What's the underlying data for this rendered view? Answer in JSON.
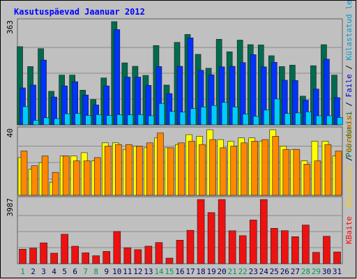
{
  "chart_data": {
    "type": "bar",
    "title": "Kasutuspäevad Jaanuar 2012",
    "categories": [
      "1",
      "2",
      "3",
      "4",
      "5",
      "6",
      "7",
      "8",
      "9",
      "10",
      "11",
      "12",
      "13",
      "14",
      "15",
      "16",
      "17",
      "18",
      "19",
      "20",
      "21",
      "22",
      "23",
      "24",
      "25",
      "26",
      "27",
      "28",
      "29",
      "30",
      "31"
    ],
    "weekend_days": [
      "1",
      "7",
      "8",
      "14",
      "15",
      "21",
      "22",
      "28",
      "29"
    ],
    "panels": [
      {
        "axis_max": "363",
        "ylim": [
          0,
          363
        ],
        "legend": [
          {
            "text": "Pöördumisi",
            "color": "#006633"
          },
          {
            "text": " / ",
            "color": "#000000"
          },
          {
            "text": "Faile",
            "color": "#0000cc"
          },
          {
            "text": " / ",
            "color": "#000000"
          },
          {
            "text": "Külastatud lehti",
            "color": "#0099cc"
          }
        ],
        "series": [
          {
            "name": "Pöördumisi",
            "color": "#006b4f",
            "values": [
              275,
              205,
              268,
              118,
              175,
              175,
              122,
              89,
              165,
              363,
              218,
              206,
              174,
              279,
              140,
              290,
              318,
              248,
              199,
              301,
              257,
              298,
              282,
              281,
              243,
              205,
              210,
              101,
              208,
              282,
              175
            ]
          },
          {
            "name": "Faile",
            "color": "#0033ff",
            "values": [
              130,
              140,
              228,
              98,
              137,
              152,
              105,
              70,
              137,
              335,
              168,
              168,
              139,
              205,
              110,
              206,
              306,
              192,
              176,
              204,
              206,
              219,
              247,
              204,
              220,
              157,
              156,
              87,
              126,
              231,
              96
            ]
          },
          {
            "name": "Külastatud lehti",
            "color": "#00ccff",
            "values": [
              64,
              16,
              25,
              22,
              39,
              40,
              33,
              36,
              33,
              36,
              35,
              36,
              32,
              75,
              47,
              45,
              57,
              63,
              68,
              79,
              63,
              38,
              30,
              52,
              91,
              40,
              42,
              46,
              32,
              32,
              26
            ]
          }
        ]
      },
      {
        "axis_max": "40",
        "ylim": [
          0,
          40
        ],
        "legend": [
          {
            "text": "Külastusi",
            "color": "#ffcc00"
          },
          {
            "text": " / ",
            "color": "#000000"
          },
          {
            "text": "Arvuteid",
            "color": "#ff8800"
          }
        ],
        "series": [
          {
            "name": "Külastusi",
            "color": "#ffff00",
            "values": [
              23,
              16,
              20,
              8,
              24,
              24,
              26,
              21,
              32,
              32,
              28,
              30,
              29,
              35,
              29,
              31,
              37,
              36,
              40,
              34,
              33,
              35,
              35,
              33,
              40,
              30,
              28,
              21,
              33,
              33,
              24
            ]
          },
          {
            "name": "Arvuteid",
            "color": "#ff8800",
            "values": [
              27,
              18,
              24,
              14,
              24,
              21,
              21,
              23,
              30,
              31,
              31,
              30,
              32,
              38,
              29,
              32,
              33,
              31,
              34,
              29,
              30,
              32,
              33,
              34,
              36,
              28,
              28,
              19,
              21,
              31,
              27
            ]
          }
        ]
      },
      {
        "axis_max": "3987",
        "ylim": [
          0,
          3987
        ],
        "legend": [
          {
            "text": "KBaite",
            "color": "#ff0000"
          }
        ],
        "series": [
          {
            "name": "KBaite",
            "color": "#ee1111",
            "values": [
              898,
              964,
              1293,
              653,
              1827,
              1084,
              673,
              492,
              762,
              2000,
              991,
              870,
              1087,
              1314,
              346,
              1460,
              2073,
              3987,
              3175,
              3987,
              2045,
              1739,
              2711,
              3987,
              2198,
              2050,
              1677,
              2400,
              704,
              1702,
              729
            ]
          }
        ]
      }
    ]
  }
}
